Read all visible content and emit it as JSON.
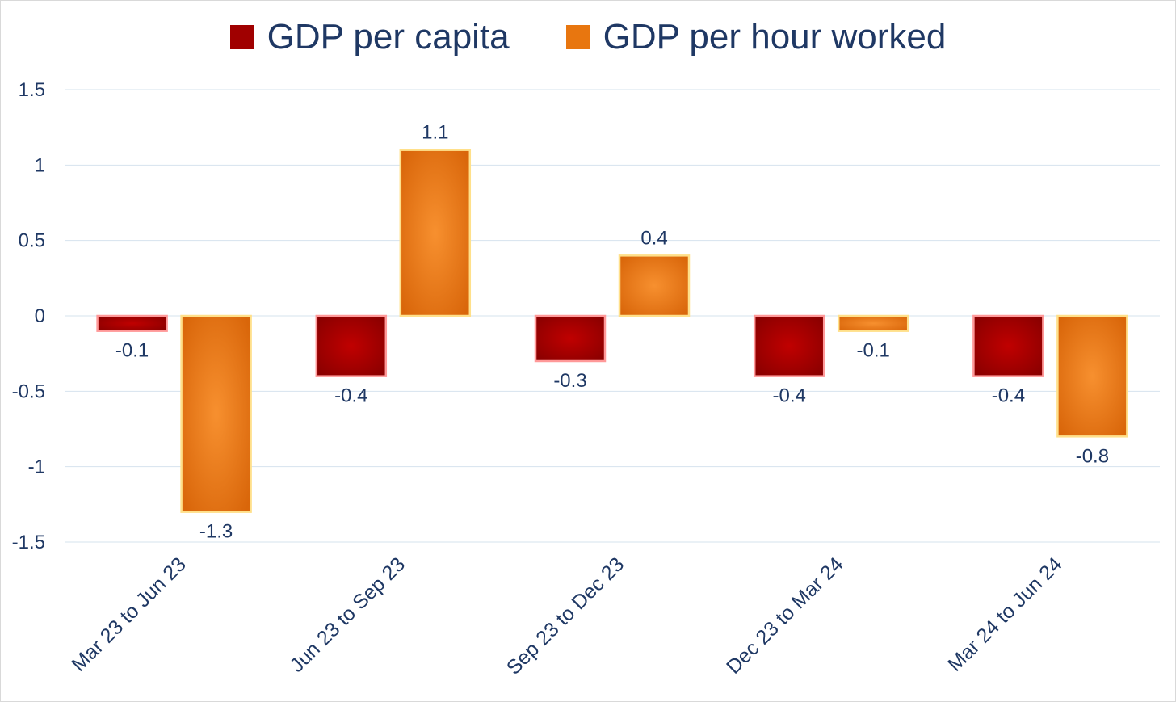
{
  "chart_data": {
    "type": "bar",
    "categories": [
      "Mar 23 to Jun 23",
      "Jun 23 to Sep 23",
      "Sep 23 to Dec 23",
      "Dec 23 to Mar 24",
      "Mar 24 to Jun 24"
    ],
    "series": [
      {
        "name": "GDP per capita",
        "values": [
          -0.1,
          -0.4,
          -0.3,
          -0.4,
          -0.4
        ],
        "labels": [
          "-0.1",
          "-0.4",
          "-0.3",
          "-0.4",
          "-0.4"
        ],
        "color": "#a00000",
        "glow": "#ff9999"
      },
      {
        "name": "GDP per hour worked",
        "values": [
          -1.3,
          1.1,
          0.4,
          -0.1,
          -0.8
        ],
        "labels": [
          "-1.3",
          "1.1",
          "0.4",
          "-0.1",
          "-0.8"
        ],
        "color": "#e8760f",
        "glow": "#ffe08a"
      }
    ],
    "y_ticks": [
      "1.5",
      "1",
      "0.5",
      "0",
      "-0.5",
      "-1",
      "-1.5"
    ],
    "ylim": [
      -1.5,
      1.5
    ],
    "grid": true,
    "legend": "top"
  }
}
